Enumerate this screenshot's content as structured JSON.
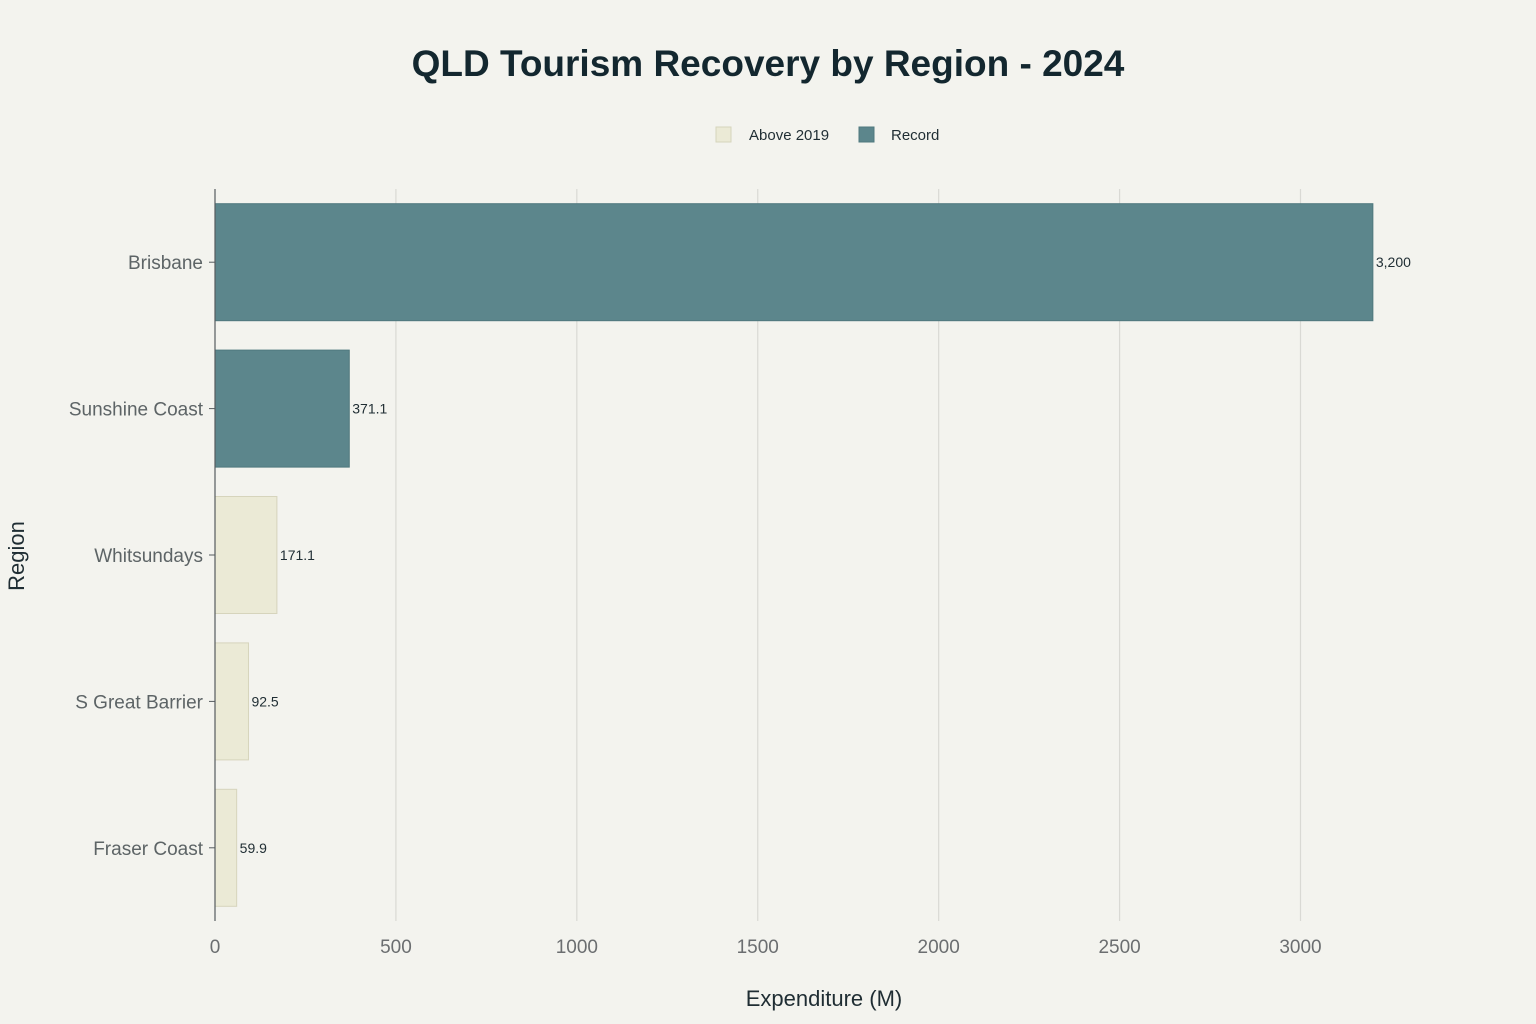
{
  "chart_data": {
    "type": "bar",
    "orientation": "horizontal",
    "title": "QLD Tourism Recovery by Region - 2024",
    "xlabel": "Expenditure (M)",
    "ylabel": "Region",
    "xlim": [
      0,
      3300
    ],
    "xticks": [
      0,
      500,
      1000,
      1500,
      2000,
      2500,
      3000
    ],
    "xtick_labels": [
      "0",
      "500",
      "1000",
      "1500",
      "2000",
      "2500",
      "3000"
    ],
    "grid": true,
    "legend_position": "top-center",
    "legend": [
      {
        "name": "Above 2019",
        "color": "#ebead6",
        "border": "#d6d4bc"
      },
      {
        "name": "Record",
        "color": "#5c868c",
        "border": "#4f787e"
      }
    ],
    "categories": [
      "Brisbane",
      "Sunshine Coast",
      "Whitsundays",
      "S Great Barrier",
      "Fraser Coast"
    ],
    "values": [
      3200,
      371.1,
      171.1,
      92.5,
      59.9
    ],
    "value_labels": [
      "3,200",
      "371.1",
      "171.1",
      "92.5",
      "59.9"
    ],
    "series_of_bar": [
      "Record",
      "Record",
      "Above 2019",
      "Above 2019",
      "Above 2019"
    ]
  }
}
